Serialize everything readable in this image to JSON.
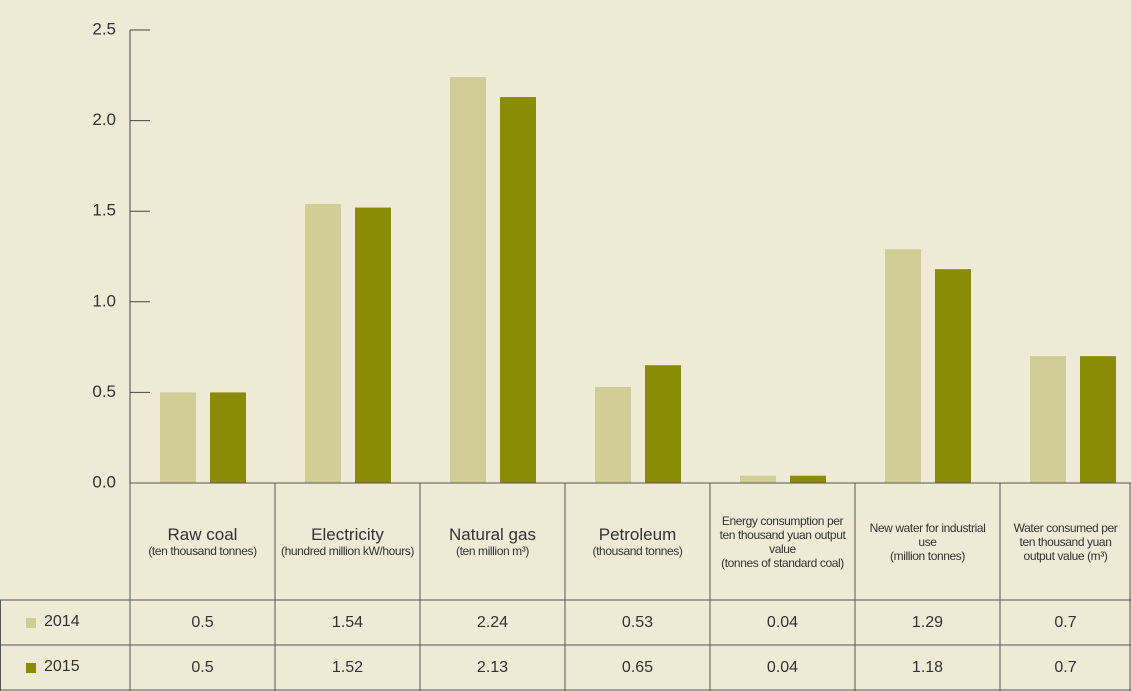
{
  "chart_data": {
    "type": "bar",
    "categories": [
      "Raw coal",
      "Electricity",
      "Natural gas",
      "Petroleum",
      "Energy consumption per ten thousand yuan output value",
      "New water for industrial use",
      "Water consumed per ten thousand yuan output value (m³)"
    ],
    "category_units": [
      "(ten thousand tonnes)",
      "(hundred million kW/hours)",
      "(ten million m³)",
      "(thousand tonnes)",
      "(tonnes of standard coal)",
      "(million tonnes)",
      null
    ],
    "series": [
      {
        "name": "2014",
        "color": "#d1cd96",
        "values": [
          0.5,
          1.54,
          2.24,
          0.53,
          0.04,
          1.29,
          0.7
        ]
      },
      {
        "name": "2015",
        "color": "#8a8c06",
        "values": [
          0.5,
          1.52,
          2.13,
          0.65,
          0.04,
          1.18,
          0.7
        ]
      }
    ],
    "ylim": [
      0,
      2.5
    ],
    "yticks": [
      {
        "value": 0,
        "label": "0.0"
      },
      0.5,
      {
        "value": 1,
        "label": "1.0"
      },
      1.5,
      {
        "value": 2,
        "label": "2.0"
      },
      2.5
    ]
  }
}
